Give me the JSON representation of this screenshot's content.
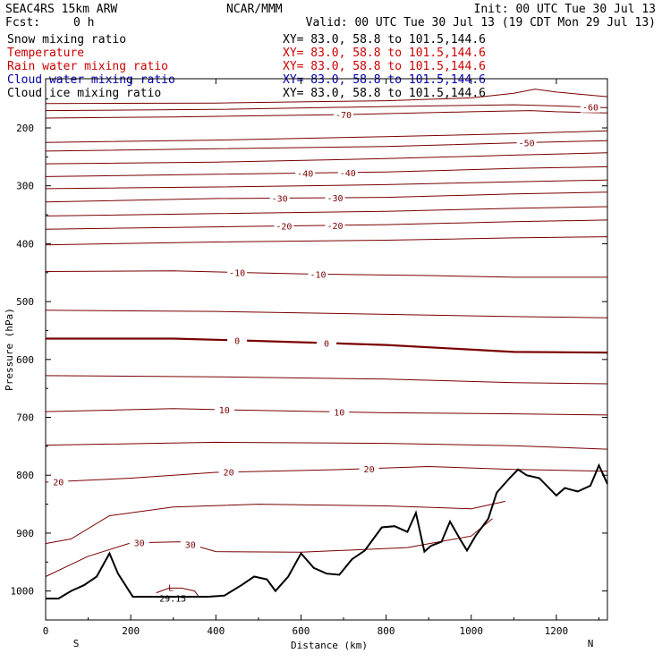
{
  "header": {
    "model": "SEAC4RS 15km ARW",
    "center": "NCAR/MMM",
    "init": "Init: 00 UTC Tue 30 Jul 13",
    "fcst_label": "Fcst:",
    "fcst_value": "0 h",
    "valid": "Valid: 00 UTC Tue 30 Jul 13 (19 CDT Mon 29 Jul 13)",
    "fields": [
      {
        "name": "Snow mixing ratio",
        "xy": "XY=  83.0, 58.8 to 101.5,144.6",
        "color": "#000000"
      },
      {
        "name": "Temperature",
        "xy": "XY=  83.0, 58.8 to 101.5,144.6",
        "color": "#cc0000"
      },
      {
        "name": "Rain water mixing ratio",
        "xy": "XY=  83.0, 58.8 to 101.5,144.6",
        "color": "#cc0000"
      },
      {
        "name": "Cloud water mixing ratio",
        "xy": "XY=  83.0, 58.8 to 101.5,144.6",
        "color": "#0000aa"
      },
      {
        "name": "Cloud ice mixing ratio",
        "xy": "XY=  83.0, 58.8 to 101.5,144.6",
        "color": "#000000"
      }
    ]
  },
  "chart_data": {
    "type": "line",
    "title": "",
    "xlabel": "Distance (km)",
    "ylabel": "Pressure (hPa)",
    "xlim": [
      0,
      1320
    ],
    "ylim": [
      1050,
      115
    ],
    "x_ticks": [
      0,
      200,
      400,
      600,
      800,
      1000,
      1200
    ],
    "y_ticks": [
      200,
      300,
      400,
      500,
      600,
      700,
      800,
      900,
      1000
    ],
    "x_end_labels": {
      "left": "S",
      "right": "N"
    },
    "low_marker": {
      "symbol": "L",
      "value": "29.15",
      "x": 305,
      "p": 1003
    },
    "contour_color": "#7a0000",
    "series": [
      {
        "name": "-70",
        "values": [
          [
            0,
            183
          ],
          [
            300,
            181
          ],
          [
            700,
            177
          ],
          [
            1000,
            172
          ],
          [
            1140,
            170
          ],
          [
            1200,
            172
          ],
          [
            1320,
            174
          ]
        ],
        "labels": [
          {
            "text": "-70",
            "x": 700
          }
        ]
      },
      {
        "name": "-60",
        "values": [
          [
            0,
            170
          ],
          [
            400,
            168
          ],
          [
            800,
            163
          ],
          [
            1100,
            160
          ],
          [
            1200,
            162
          ],
          [
            1320,
            165
          ]
        ],
        "labels": [
          {
            "text": "-60",
            "x": 1280
          }
        ]
      },
      {
        "name": "unlabeled",
        "values": [
          [
            0,
            158
          ],
          [
            400,
            157
          ],
          [
            800,
            153
          ],
          [
            1000,
            148
          ],
          [
            1100,
            140
          ],
          [
            1150,
            133
          ],
          [
            1200,
            138
          ],
          [
            1320,
            146
          ]
        ],
        "labels": []
      },
      {
        "name": "-55",
        "values": [
          [
            0,
            225
          ],
          [
            400,
            221
          ],
          [
            800,
            215
          ],
          [
            1100,
            210
          ],
          [
            1320,
            205
          ]
        ],
        "labels": []
      },
      {
        "name": "-50",
        "values": [
          [
            0,
            240
          ],
          [
            400,
            236
          ],
          [
            800,
            232
          ],
          [
            1100,
            226
          ],
          [
            1320,
            222
          ]
        ],
        "labels": [
          {
            "text": "-50",
            "x": 1130
          }
        ]
      },
      {
        "name": "-45",
        "values": [
          [
            0,
            262
          ],
          [
            400,
            259
          ],
          [
            800,
            253
          ],
          [
            1100,
            247
          ],
          [
            1320,
            243
          ]
        ],
        "labels": []
      },
      {
        "name": "-40",
        "values": [
          [
            0,
            284
          ],
          [
            400,
            280
          ],
          [
            800,
            276
          ],
          [
            1100,
            270
          ],
          [
            1320,
            267
          ]
        ],
        "labels": [
          {
            "text": "-40",
            "x": 610
          },
          {
            "text": "-40",
            "x": 710
          }
        ]
      },
      {
        "name": "-35",
        "values": [
          [
            0,
            305
          ],
          [
            400,
            302
          ],
          [
            800,
            298
          ],
          [
            1100,
            293
          ],
          [
            1320,
            290
          ]
        ],
        "labels": []
      },
      {
        "name": "-30",
        "values": [
          [
            0,
            328
          ],
          [
            400,
            322
          ],
          [
            800,
            320
          ],
          [
            1100,
            314
          ],
          [
            1320,
            311
          ]
        ],
        "labels": [
          {
            "text": "-30",
            "x": 550
          },
          {
            "text": "-30",
            "x": 680
          }
        ]
      },
      {
        "name": "-25",
        "values": [
          [
            0,
            352
          ],
          [
            400,
            348
          ],
          [
            800,
            344
          ],
          [
            1100,
            339
          ],
          [
            1320,
            336
          ]
        ],
        "labels": []
      },
      {
        "name": "-20",
        "values": [
          [
            0,
            375
          ],
          [
            400,
            371
          ],
          [
            800,
            367
          ],
          [
            1100,
            362
          ],
          [
            1320,
            359
          ]
        ],
        "labels": [
          {
            "text": "-20",
            "x": 560
          },
          {
            "text": "-20",
            "x": 680
          }
        ]
      },
      {
        "name": "-15",
        "values": [
          [
            0,
            402
          ],
          [
            400,
            397
          ],
          [
            800,
            394
          ],
          [
            1100,
            390
          ],
          [
            1320,
            388
          ]
        ],
        "labels": []
      },
      {
        "name": "-10",
        "values": [
          [
            0,
            448
          ],
          [
            300,
            447
          ],
          [
            600,
            452
          ],
          [
            900,
            455
          ],
          [
            1100,
            458
          ],
          [
            1320,
            458
          ]
        ],
        "labels": [
          {
            "text": "-10",
            "x": 450
          },
          {
            "text": "-10",
            "x": 640
          }
        ]
      },
      {
        "name": "-5",
        "values": [
          [
            0,
            515
          ],
          [
            400,
            517
          ],
          [
            800,
            522
          ],
          [
            1100,
            526
          ],
          [
            1320,
            528
          ]
        ],
        "labels": []
      },
      {
        "name": "0",
        "values": [
          [
            0,
            564
          ],
          [
            300,
            564
          ],
          [
            500,
            568
          ],
          [
            800,
            575
          ],
          [
            1100,
            587
          ],
          [
            1320,
            588
          ]
        ],
        "labels": [
          {
            "text": "0",
            "x": 450
          },
          {
            "text": "0",
            "x": 660
          }
        ]
      },
      {
        "name": "5",
        "values": [
          [
            0,
            628
          ],
          [
            400,
            630
          ],
          [
            800,
            634
          ],
          [
            1100,
            640
          ],
          [
            1320,
            642
          ]
        ],
        "labels": []
      },
      {
        "name": "10",
        "values": [
          [
            0,
            690
          ],
          [
            300,
            685
          ],
          [
            500,
            688
          ],
          [
            800,
            692
          ],
          [
            1100,
            694
          ],
          [
            1320,
            696
          ]
        ],
        "labels": [
          {
            "text": "10",
            "x": 420
          },
          {
            "text": "10",
            "x": 690
          }
        ]
      },
      {
        "name": "15",
        "values": [
          [
            0,
            748
          ],
          [
            400,
            743
          ],
          [
            800,
            745
          ],
          [
            1100,
            749
          ],
          [
            1320,
            755
          ]
        ],
        "labels": []
      },
      {
        "name": "20",
        "values": [
          [
            0,
            812
          ],
          [
            200,
            805
          ],
          [
            400,
            795
          ],
          [
            700,
            790
          ],
          [
            900,
            785
          ],
          [
            1100,
            790
          ],
          [
            1320,
            793
          ]
        ],
        "labels": [
          {
            "text": "20",
            "x": 30
          },
          {
            "text": "20",
            "x": 430
          },
          {
            "text": "20",
            "x": 760
          }
        ]
      },
      {
        "name": "25",
        "values": [
          [
            0,
            918
          ],
          [
            60,
            910
          ],
          [
            150,
            870
          ],
          [
            300,
            855
          ],
          [
            500,
            850
          ],
          [
            800,
            853
          ],
          [
            1000,
            858
          ],
          [
            1080,
            845
          ]
        ],
        "labels": []
      },
      {
        "name": "30",
        "values": [
          [
            0,
            975
          ],
          [
            100,
            940
          ],
          [
            200,
            917
          ],
          [
            320,
            915
          ],
          [
            400,
            932
          ],
          [
            600,
            933
          ],
          [
            850,
            925
          ],
          [
            1000,
            905
          ],
          [
            1050,
            875
          ]
        ],
        "labels": [
          {
            "text": "30",
            "x": 220
          },
          {
            "text": "30",
            "x": 340
          }
        ]
      },
      {
        "name": "35",
        "values": [
          [
            260,
            1003
          ],
          [
            290,
            995
          ],
          [
            320,
            995
          ],
          [
            350,
            1000
          ],
          [
            360,
            1010
          ]
        ],
        "labels": []
      }
    ],
    "terrain": [
      [
        0,
        1013
      ],
      [
        30,
        1013
      ],
      [
        60,
        1000
      ],
      [
        90,
        990
      ],
      [
        120,
        975
      ],
      [
        150,
        935
      ],
      [
        170,
        970
      ],
      [
        205,
        1010
      ],
      [
        250,
        1010
      ],
      [
        380,
        1010
      ],
      [
        420,
        1008
      ],
      [
        460,
        990
      ],
      [
        490,
        975
      ],
      [
        520,
        980
      ],
      [
        540,
        1000
      ],
      [
        570,
        975
      ],
      [
        600,
        935
      ],
      [
        630,
        960
      ],
      [
        660,
        970
      ],
      [
        690,
        972
      ],
      [
        720,
        945
      ],
      [
        750,
        930
      ],
      [
        790,
        890
      ],
      [
        820,
        888
      ],
      [
        850,
        898
      ],
      [
        870,
        865
      ],
      [
        890,
        932
      ],
      [
        905,
        922
      ],
      [
        930,
        915
      ],
      [
        950,
        880
      ],
      [
        975,
        912
      ],
      [
        990,
        930
      ],
      [
        1010,
        905
      ],
      [
        1040,
        875
      ],
      [
        1060,
        830
      ],
      [
        1090,
        805
      ],
      [
        1110,
        790
      ],
      [
        1130,
        800
      ],
      [
        1160,
        805
      ],
      [
        1180,
        820
      ],
      [
        1200,
        835
      ],
      [
        1220,
        822
      ],
      [
        1250,
        828
      ],
      [
        1280,
        818
      ],
      [
        1300,
        783
      ],
      [
        1320,
        815
      ]
    ]
  }
}
